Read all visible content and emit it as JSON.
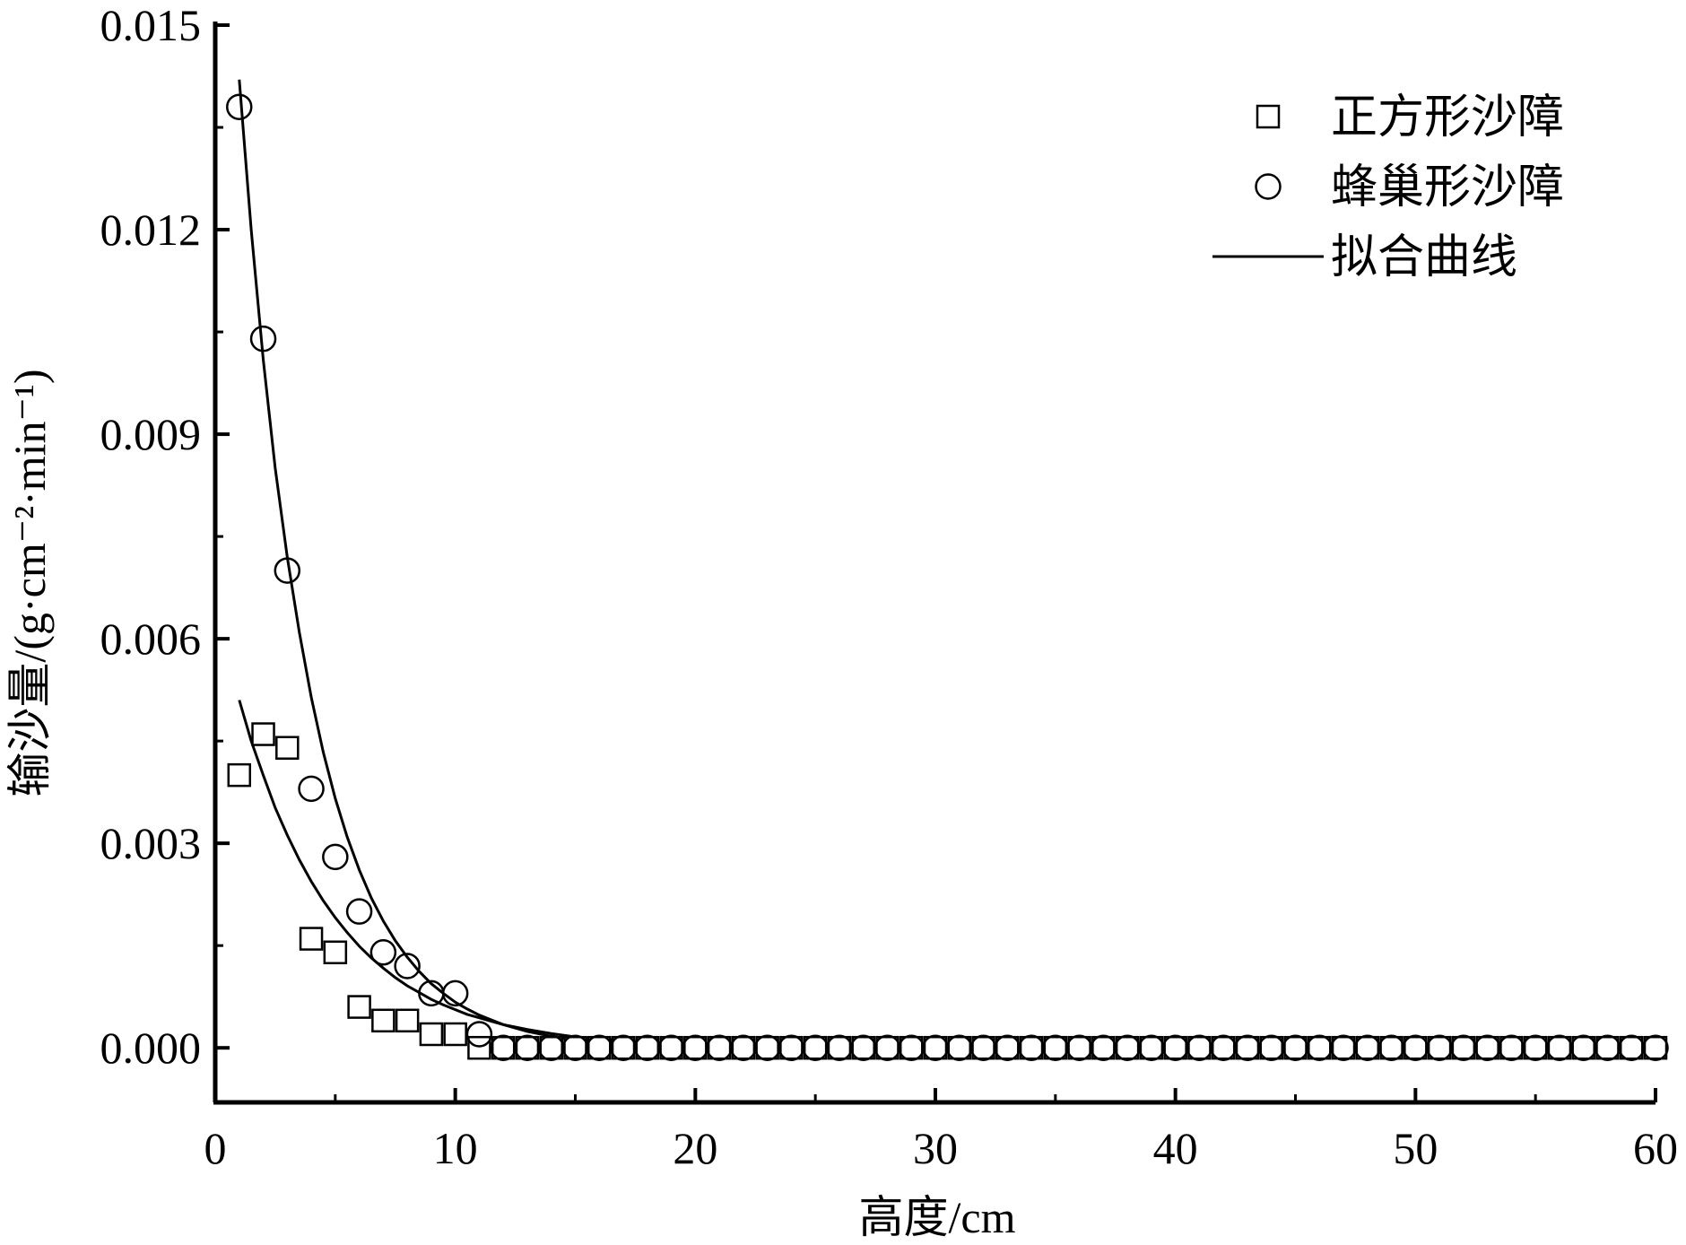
{
  "chart_data": {
    "type": "scatter",
    "title": "",
    "xlabel": "高度/cm",
    "ylabel": "输沙量/(g·cm⁻²·min⁻¹)",
    "xlim": [
      0,
      60
    ],
    "ylim": [
      -0.0008,
      0.015
    ],
    "xticks": [
      "0",
      "10",
      "20",
      "30",
      "40",
      "50",
      "60"
    ],
    "yticks": [
      "0.000",
      "0.003",
      "0.006",
      "0.009",
      "0.012",
      "0.015"
    ],
    "grid": false,
    "legend_position": "top-right",
    "series": [
      {
        "name": "正方形沙障",
        "marker": "square",
        "x": [
          1,
          2,
          3,
          4,
          5,
          6,
          7,
          8,
          9,
          10,
          11,
          12,
          13,
          14,
          15,
          16,
          17,
          18,
          19,
          20,
          21,
          22,
          23,
          24,
          25,
          26,
          27,
          28,
          29,
          30,
          31,
          32,
          33,
          34,
          35,
          36,
          37,
          38,
          39,
          40,
          41,
          42,
          43,
          44,
          45,
          46,
          47,
          48,
          49,
          50,
          51,
          52,
          53,
          54,
          55,
          56,
          57,
          58,
          59,
          60
        ],
        "y": [
          0.004,
          0.0046,
          0.0044,
          0.0016,
          0.0014,
          0.0006,
          0.0004,
          0.0004,
          0.0002,
          0.0002,
          0,
          0,
          0,
          0,
          0,
          0,
          0,
          0,
          0,
          0,
          0,
          0,
          0,
          0,
          0,
          0,
          0,
          0,
          0,
          0,
          0,
          0,
          0,
          0,
          0,
          0,
          0,
          0,
          0,
          0,
          0,
          0,
          0,
          0,
          0,
          0,
          0,
          0,
          0,
          0,
          0,
          0,
          0,
          0,
          0,
          0,
          0,
          0,
          0,
          0
        ]
      },
      {
        "name": "蜂巢形沙障",
        "marker": "circle",
        "x": [
          1,
          2,
          3,
          4,
          5,
          6,
          7,
          8,
          9,
          10,
          11,
          12,
          13,
          14,
          15,
          16,
          17,
          18,
          19,
          20,
          21,
          22,
          23,
          24,
          25,
          26,
          27,
          28,
          29,
          30,
          31,
          32,
          33,
          34,
          35,
          36,
          37,
          38,
          39,
          40,
          41,
          42,
          43,
          44,
          45,
          46,
          47,
          48,
          49,
          50,
          51,
          52,
          53,
          54,
          55,
          56,
          57,
          58,
          59,
          60
        ],
        "y": [
          0.0138,
          0.0104,
          0.007,
          0.0038,
          0.0028,
          0.002,
          0.0014,
          0.0012,
          0.0008,
          0.0008,
          0.0002,
          0,
          0,
          0,
          0,
          0,
          0,
          0,
          0,
          0,
          0,
          0,
          0,
          0,
          0,
          0,
          0,
          0,
          0,
          0,
          0,
          0,
          0,
          0,
          0,
          0,
          0,
          0,
          0,
          0,
          0,
          0,
          0,
          0,
          0,
          0,
          0,
          0,
          0,
          0,
          0,
          0,
          0,
          0,
          0,
          0,
          0,
          0,
          0,
          0
        ]
      },
      {
        "name": "拟合曲线",
        "marker": "line",
        "x": [
          1,
          1.5,
          2,
          2.5,
          3,
          3.5,
          4,
          4.5,
          5,
          5.5,
          6,
          6.5,
          7,
          7.5,
          8,
          8.5,
          9,
          9.5,
          10,
          10.5,
          11,
          11.5,
          12,
          13,
          14,
          15,
          16,
          18,
          20,
          25,
          30,
          35,
          40,
          45,
          50,
          55,
          60
        ],
        "y": [
          0.0051,
          0.0045,
          0.004,
          0.00352,
          0.00312,
          0.00276,
          0.00244,
          0.00216,
          0.00191,
          0.00169,
          0.00149,
          0.00132,
          0.00117,
          0.00103,
          0.00091,
          0.00081,
          0.00071,
          0.00063,
          0.00056,
          0.00049,
          0.00044,
          0.00039,
          0.00034,
          0.00027,
          0.00021,
          0.00016,
          0.00013,
          8e-05,
          5e-05,
          1e-05,
          0,
          0,
          0,
          0,
          0,
          0,
          0
        ]
      },
      {
        "name": "拟合曲线",
        "marker": "line",
        "x": [
          1,
          1.5,
          2,
          2.5,
          3,
          3.5,
          4,
          4.5,
          5,
          5.5,
          6,
          6.5,
          7,
          7.5,
          8,
          8.5,
          9,
          9.5,
          10,
          10.5,
          11,
          11.5,
          12,
          13,
          14,
          15,
          16,
          18,
          20,
          25,
          30,
          35,
          40,
          45,
          50,
          55,
          60
        ],
        "y": [
          0.0142,
          0.012,
          0.0101,
          0.0085,
          0.0072,
          0.0061,
          0.00514,
          0.00434,
          0.00366,
          0.00309,
          0.00261,
          0.0022,
          0.00186,
          0.00157,
          0.00133,
          0.00112,
          0.00094,
          0.0008,
          0.00067,
          0.00057,
          0.00048,
          0.00041,
          0.00034,
          0.00024,
          0.00017,
          0.00012,
          9e-05,
          4e-05,
          2e-05,
          0,
          0,
          0,
          0,
          0,
          0,
          0,
          0
        ]
      }
    ]
  }
}
